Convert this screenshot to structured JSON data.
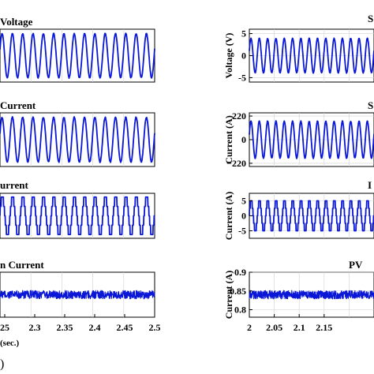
{
  "figure": {
    "caption_fragment": ")"
  },
  "chart_data": [
    {
      "id": "voltage-left",
      "type": "line",
      "title": "Voltage",
      "waveform": "sine",
      "cycles": 15,
      "x_ticks": [],
      "y_ticks": [],
      "ylabel": "",
      "xlabel": ""
    },
    {
      "id": "current-left",
      "type": "line",
      "title": "Current",
      "waveform": "sine",
      "cycles": 15,
      "x_ticks": [],
      "y_ticks": [],
      "ylabel": "",
      "xlabel": ""
    },
    {
      "id": "urrent-left",
      "type": "line",
      "title": "urrent",
      "waveform": "staircase",
      "cycles": 15,
      "x_ticks": [],
      "y_ticks": [],
      "ylabel": "",
      "xlabel": ""
    },
    {
      "id": "n-current-left",
      "type": "line",
      "title": "n Current",
      "waveform": "noise",
      "center": 0.84,
      "amplitude": 0.007,
      "x_ticks": [
        "25",
        "2.3",
        "2.35",
        "2.4",
        "2.45",
        "2.5"
      ],
      "y_ticks": [],
      "ylabel": "",
      "xlabel": "(sec.)"
    },
    {
      "id": "s-voltage-right",
      "type": "line",
      "title": "S",
      "waveform": "sine",
      "cycles": 15,
      "ylim": [
        -6,
        6
      ],
      "x_ticks": [],
      "y_ticks": [
        {
          "value": 5,
          "label": "5"
        },
        {
          "value": 0,
          "label": "0"
        },
        {
          "value": -5,
          "label": "-5"
        }
      ],
      "ylabel": "Voltage (V)",
      "xlabel": ""
    },
    {
      "id": "s-current-right",
      "type": "line",
      "title": "S",
      "waveform": "sine",
      "cycles": 15,
      "ylim": [
        -250,
        250
      ],
      "x_ticks": [],
      "y_ticks": [
        {
          "value": 220,
          "label": "220"
        },
        {
          "value": 0,
          "label": "0"
        },
        {
          "value": -220,
          "label": "−220"
        }
      ],
      "ylabel": "Current (A)",
      "xlabel": ""
    },
    {
      "id": "i-current-right",
      "type": "line",
      "title": "I",
      "waveform": "staircase",
      "cycles": 15,
      "ylim": [
        -7.5,
        7.5
      ],
      "x_ticks": [],
      "y_ticks": [
        {
          "value": 5,
          "label": "5"
        },
        {
          "value": 0,
          "label": "0"
        },
        {
          "value": -5,
          "label": "-5"
        }
      ],
      "ylabel": "Current (A)",
      "xlabel": ""
    },
    {
      "id": "pv-current-right",
      "type": "line",
      "title": "PV",
      "waveform": "noise",
      "center": 0.84,
      "amplitude": 0.007,
      "ylim": [
        0.78,
        0.9
      ],
      "x_ticks": [
        "2",
        "2.05",
        "2.1",
        "2.15"
      ],
      "y_ticks": [
        {
          "value": 0.9,
          "label": "0.9"
        },
        {
          "value": 0.85,
          "label": "0.85"
        },
        {
          "value": 0.8,
          "label": "0.8"
        }
      ],
      "ylabel": "Current (A)",
      "xlabel": ""
    }
  ]
}
